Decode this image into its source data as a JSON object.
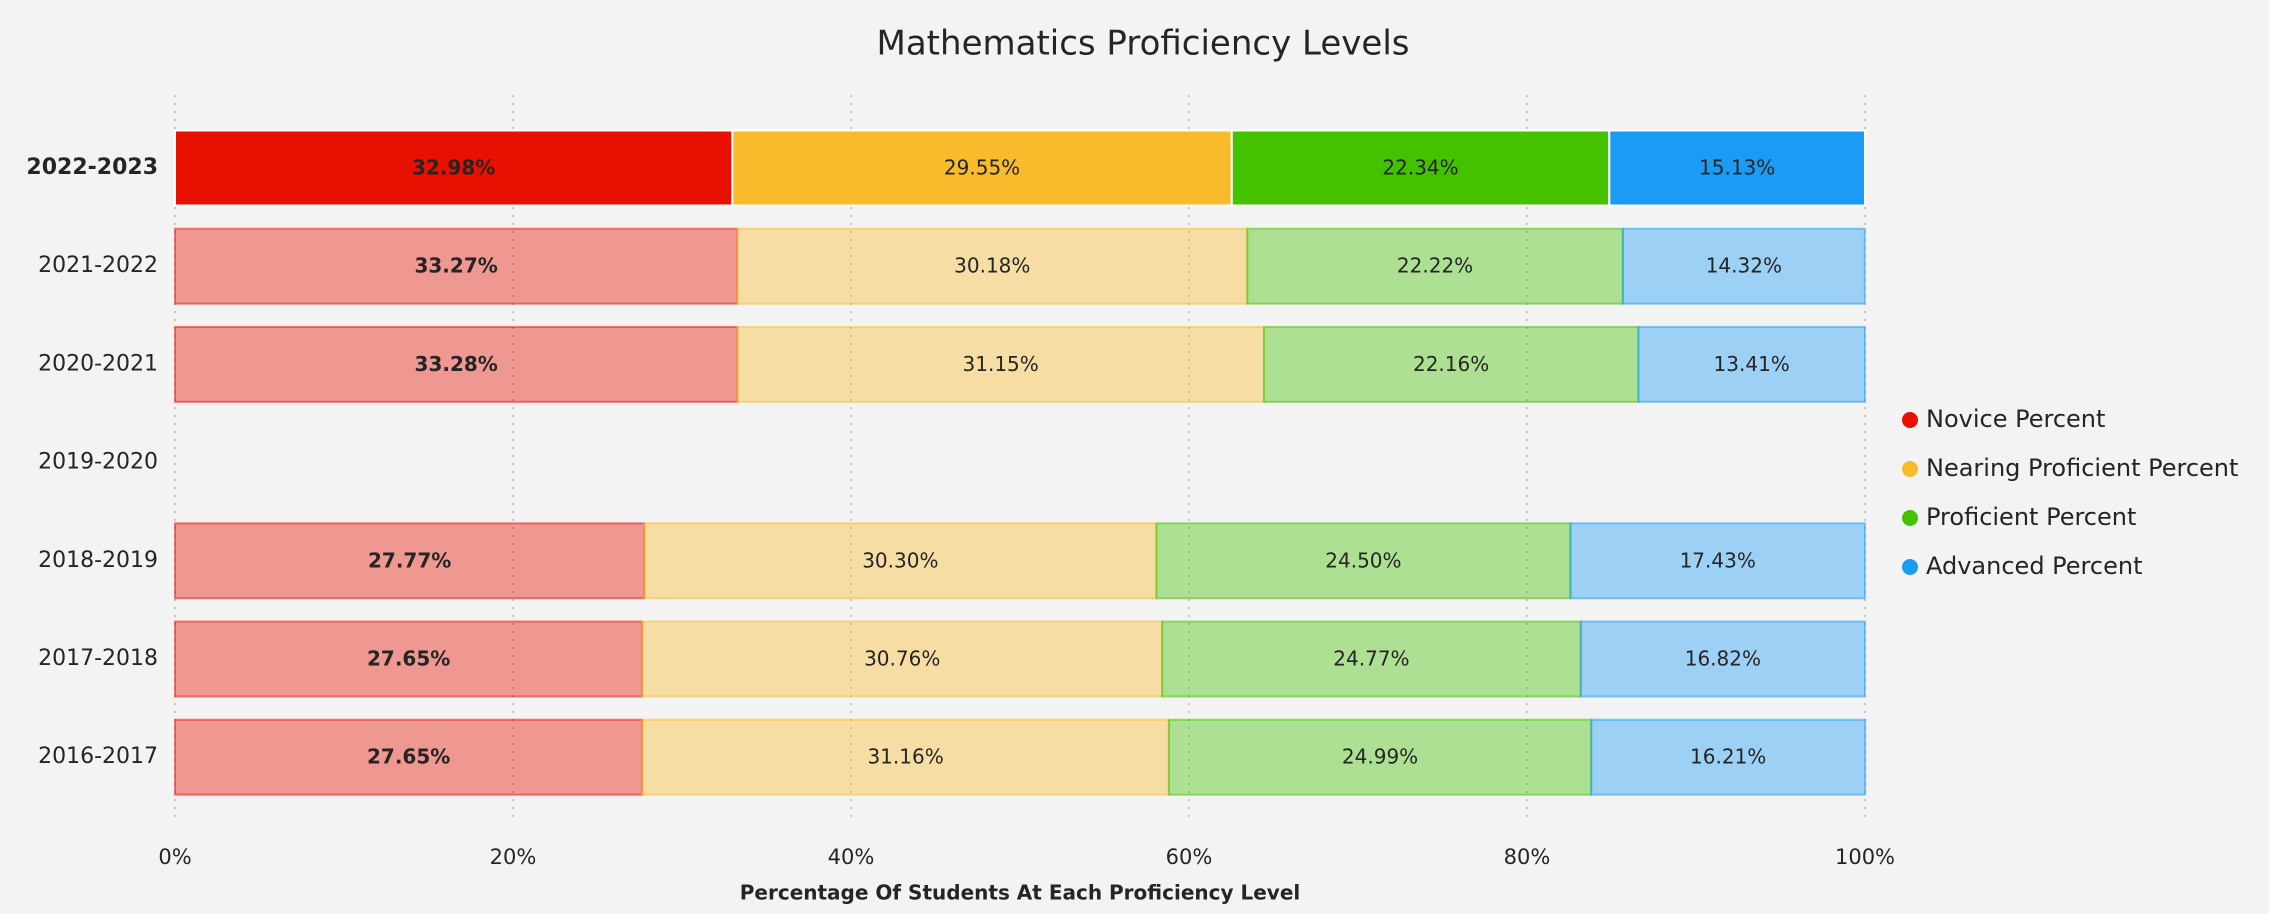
{
  "chart_data": {
    "type": "stacked_bar_horizontal",
    "title": "Mathematics Proficiency Levels",
    "x_label": "Percentage Of Students At Each Proficiency Level",
    "categories": [
      "2022-2023",
      "2021-2022",
      "2020-2021",
      "2019-2020",
      "2018-2019",
      "2017-2018",
      "2016-2017"
    ],
    "series": [
      {
        "name": "Novice Percent",
        "color": "#e81000",
        "label_color": "#ffffff",
        "values": [
          32.98,
          33.27,
          33.28,
          null,
          27.77,
          27.65,
          27.65
        ],
        "value_labels": [
          "32.98%",
          "33.27%",
          "33.28%",
          null,
          "27.77%",
          "27.65%",
          "27.65%"
        ]
      },
      {
        "name": "Nearing Proficient Percent",
        "color": "#f8bb2c",
        "label_color": "#222222",
        "values": [
          29.55,
          30.18,
          31.15,
          null,
          30.3,
          30.76,
          31.16
        ],
        "value_labels": [
          "29.55%",
          "30.18%",
          "31.15%",
          null,
          "30.30%",
          "30.76%",
          "31.16%"
        ]
      },
      {
        "name": "Proficient Percent",
        "color": "#44c200",
        "label_color": "#222222",
        "values": [
          22.34,
          22.22,
          22.16,
          null,
          24.5,
          24.77,
          24.99
        ],
        "value_labels": [
          "22.34%",
          "22.22%",
          "22.16%",
          null,
          "24.50%",
          "24.77%",
          "24.99%"
        ]
      },
      {
        "name": "Advanced Percent",
        "color": "#1a9cf5",
        "label_color": "#222222",
        "values": [
          15.13,
          14.32,
          13.41,
          null,
          17.43,
          16.82,
          16.21
        ],
        "value_labels": [
          "15.13%",
          "14.32%",
          "13.41%",
          null,
          "17.43%",
          "16.82%",
          "16.21%"
        ]
      }
    ],
    "highlight": 0,
    "xlim": [
      0,
      100
    ],
    "xticks": [
      {
        "value": 0,
        "label": "0%"
      },
      {
        "value": 20,
        "label": "20%"
      },
      {
        "value": 40,
        "label": "40%"
      },
      {
        "value": 60,
        "label": "60%"
      },
      {
        "value": 80,
        "label": "80%"
      },
      {
        "value": 100,
        "label": "100%"
      }
    ],
    "grid": true,
    "legend": "right"
  }
}
